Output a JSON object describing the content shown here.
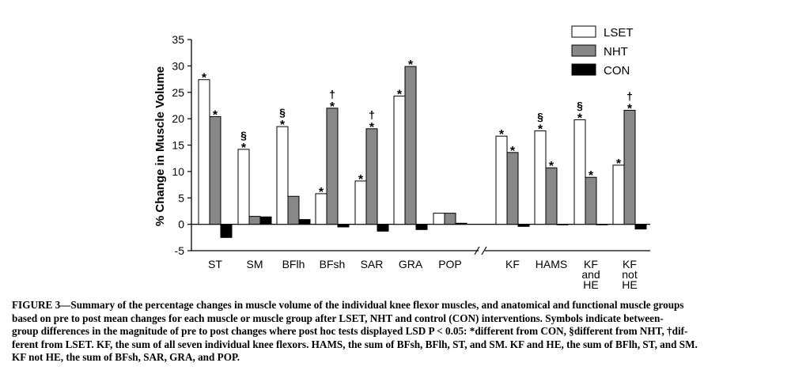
{
  "chart_data": {
    "type": "bar",
    "ylabel": "% Change in Muscle Volume",
    "ylim": [
      -5,
      35
    ],
    "yticks": [
      "-5",
      "0",
      "5",
      "10",
      "15",
      "20",
      "25",
      "30",
      "35"
    ],
    "groups": [
      {
        "label": [
          "ST"
        ]
      },
      {
        "label": [
          "SM"
        ]
      },
      {
        "label": [
          "BFlh"
        ]
      },
      {
        "label": [
          "BFsh"
        ]
      },
      {
        "label": [
          "SAR"
        ]
      },
      {
        "label": [
          "GRA"
        ]
      },
      {
        "label": [
          "POP"
        ]
      },
      {
        "label": [
          "KF"
        ]
      },
      {
        "label": [
          "HAMS"
        ]
      },
      {
        "label": [
          "KF",
          "and",
          "HE"
        ]
      },
      {
        "label": [
          "KF",
          "not",
          "HE"
        ]
      }
    ],
    "series": [
      {
        "name": "LSET",
        "color": "#ffffff",
        "values": [
          27.4,
          14.2,
          18.5,
          5.8,
          8.2,
          24.3,
          2.1,
          16.7,
          17.7,
          19.8,
          11.2
        ],
        "annotations": [
          [
            "*"
          ],
          [
            "§",
            "*"
          ],
          [
            "§",
            "*"
          ],
          [
            "*"
          ],
          [
            "*"
          ],
          [
            "*"
          ],
          [],
          [
            "*"
          ],
          [
            "§",
            "*"
          ],
          [
            "§",
            "*"
          ],
          [
            "*"
          ]
        ]
      },
      {
        "name": "NHT",
        "color": "#888888",
        "values": [
          20.4,
          1.5,
          5.3,
          22.0,
          18.1,
          29.9,
          2.1,
          13.6,
          10.7,
          8.9,
          21.6
        ],
        "annotations": [
          [
            "*"
          ],
          [],
          [],
          [
            "†",
            "*"
          ],
          [
            "†",
            "*"
          ],
          [
            "*"
          ],
          [],
          [
            "*"
          ],
          [
            "*"
          ],
          [
            "*"
          ],
          [
            "†",
            "*"
          ]
        ]
      },
      {
        "name": "CON",
        "color": "#000000",
        "values": [
          -2.5,
          1.4,
          0.9,
          -0.5,
          -1.3,
          -1.0,
          0.2,
          -0.4,
          -0.1,
          -0.1,
          -0.9
        ],
        "annotations": [
          [],
          [],
          [],
          [],
          [],
          [],
          [],
          [],
          [],
          [],
          []
        ]
      }
    ],
    "axis_break": "between POP and KF",
    "legend_position": "top-right",
    "grid": false
  },
  "caption": {
    "lines": [
      "FIGURE 3—Summary of the percentage changes in muscle volume of the individual knee flexor muscles, and anatomical and functional muscle groups",
      "based on pre to post mean changes for each muscle or muscle group after LSET, NHT and control (CON) interventions. Symbols indicate between-",
      "group differences in the magnitude of pre to post changes where post hoc tests displayed LSD P < 0.05: *different from CON, §different from NHT, †dif-",
      "ferent from LSET. KF, the sum of all seven individual knee flexors. HAMS, the sum of BFsh, BFlh, ST, and SM. KF and HE, the sum of BFlh, ST, and SM.",
      "KF not HE, the sum of BFsh, SAR, GRA, and POP."
    ]
  }
}
